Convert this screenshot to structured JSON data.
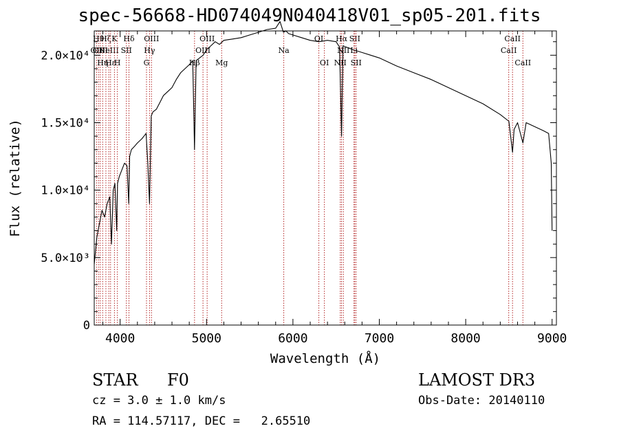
{
  "title": "spec-56668-HD074049N040418V01_sp05-201.fits",
  "info": {
    "class_label": "STAR",
    "subclass_label": "F0",
    "survey": "LAMOST DR3",
    "redshift_text": "cz = 3.0 ± 1.0 km/s",
    "obsdate_text": "Obs-Date: 20140110",
    "coords_text": "RA = 114.57117, DEC =   2.65510"
  },
  "chart_data": {
    "type": "line",
    "title": "spec-56668-HD074049N040418V01_sp05-201.fits",
    "xlabel": "Wavelength (Å)",
    "ylabel": "Flux (relative)",
    "xlim": [
      3700,
      9050
    ],
    "ylim": [
      0,
      21800
    ],
    "xticks": [
      4000,
      5000,
      6000,
      7000,
      8000,
      9000
    ],
    "yticks": [
      {
        "value": 0,
        "label": "0"
      },
      {
        "value": 5000,
        "label": "5.0×10³"
      },
      {
        "value": 10000,
        "label": "1.0×10⁴"
      },
      {
        "value": 15000,
        "label": "1.5×10⁴"
      },
      {
        "value": 20000,
        "label": "2.0×10⁴"
      }
    ],
    "grid": false,
    "line_color": "#000000",
    "marker_color": "#b22222",
    "series": [
      {
        "x": [
          3700,
          3730,
          3760,
          3790,
          3820,
          3850,
          3880,
          3900,
          3920,
          3940,
          3960,
          3970,
          3990,
          4020,
          4050,
          4080,
          4100,
          4110,
          4130,
          4160,
          4200,
          4250,
          4300,
          4320,
          4340,
          4360,
          4380,
          4420,
          4460,
          4500,
          4550,
          4600,
          4650,
          4700,
          4750,
          4800,
          4840,
          4861,
          4880,
          4920,
          4960,
          5000,
          5050,
          5100,
          5150,
          5200,
          5300,
          5400,
          5500,
          5600,
          5700,
          5800,
          5850,
          5890,
          5920,
          5950,
          6000,
          6100,
          6200,
          6300,
          6400,
          6500,
          6540,
          6563,
          6580,
          6620,
          6700,
          6800,
          6900,
          7000,
          7200,
          7400,
          7600,
          7800,
          8000,
          8200,
          8400,
          8500,
          8542,
          8560,
          8600,
          8662,
          8700,
          8800,
          8900,
          8960,
          8990,
          9000
        ],
        "values": [
          4500,
          6500,
          7500,
          8500,
          8000,
          9000,
          9500,
          6000,
          10000,
          10500,
          7000,
          10500,
          11000,
          11500,
          12000,
          11800,
          9000,
          12500,
          13000,
          13200,
          13500,
          13800,
          14200,
          12000,
          9000,
          15500,
          15800,
          16000,
          16500,
          17000,
          17300,
          17600,
          18200,
          18700,
          19000,
          19300,
          19600,
          13000,
          19600,
          19800,
          20000,
          20400,
          20700,
          21000,
          20800,
          21100,
          21200,
          21300,
          21500,
          21700,
          21900,
          22000,
          22500,
          21700,
          21800,
          21600,
          21500,
          21300,
          21100,
          21000,
          21100,
          21000,
          20600,
          14000,
          20700,
          20600,
          20400,
          20200,
          20000,
          19800,
          19200,
          18700,
          18200,
          17600,
          17000,
          16400,
          15600,
          15100,
          12800,
          14500,
          15000,
          13500,
          15000,
          14700,
          14400,
          14200,
          12000,
          7000
        ]
      }
    ],
    "line_markers": [
      {
        "x": 3727,
        "label": "OII",
        "row": 2
      },
      {
        "x": 3750,
        "label": "Hθ",
        "row": 1
      },
      {
        "x": 3770,
        "label": "OIII",
        "row": 2
      },
      {
        "x": 3798,
        "label": "Hη",
        "row": 3
      },
      {
        "x": 3835,
        "label": "Hζ",
        "row": 1
      },
      {
        "x": 3869,
        "label": "NeIII",
        "row": 2
      },
      {
        "x": 3889,
        "label": "Hε",
        "row": 3
      },
      {
        "x": 3934,
        "label": "K",
        "row": 1
      },
      {
        "x": 3968,
        "label": "H",
        "row": 3
      },
      {
        "x": 4072,
        "label": "SII",
        "row": 2
      },
      {
        "x": 4102,
        "label": "Hδ",
        "row": 1
      },
      {
        "x": 4305,
        "label": "G",
        "row": 3
      },
      {
        "x": 4340,
        "label": "Hγ",
        "row": 2
      },
      {
        "x": 4363,
        "label": "OIII",
        "row": 1
      },
      {
        "x": 4861,
        "label": "Hβ",
        "row": 3
      },
      {
        "x": 4959,
        "label": "OIII",
        "row": 2
      },
      {
        "x": 5007,
        "label": "OIII",
        "row": 1
      },
      {
        "x": 5175,
        "label": "Mg",
        "row": 3
      },
      {
        "x": 5894,
        "label": "Na",
        "row": 2
      },
      {
        "x": 6300,
        "label": "OI",
        "row": 1
      },
      {
        "x": 6364,
        "label": "OI",
        "row": 3
      },
      {
        "x": 6548,
        "label": "NII",
        "row": 3
      },
      {
        "x": 6563,
        "label": "Hα",
        "row": 1
      },
      {
        "x": 6584,
        "label": "NII",
        "row": 2
      },
      {
        "x": 6707,
        "label": "Li",
        "row": 2
      },
      {
        "x": 6716,
        "label": "SII",
        "row": 1
      },
      {
        "x": 6731,
        "label": "SII",
        "row": 3
      },
      {
        "x": 8498,
        "label": "CaII",
        "row": 2
      },
      {
        "x": 8542,
        "label": "CaII",
        "row": 1
      },
      {
        "x": 8662,
        "label": "CaII",
        "row": 3
      }
    ]
  }
}
